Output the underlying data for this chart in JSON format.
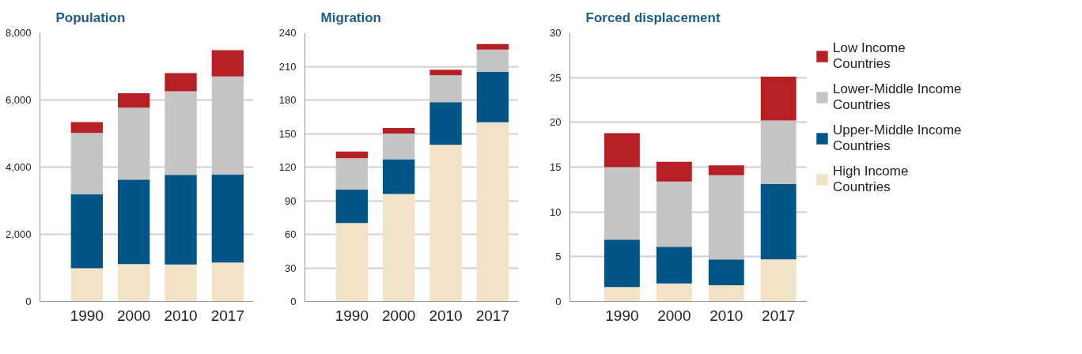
{
  "chart_data": [
    {
      "type": "bar",
      "title": "Population",
      "stacked": true,
      "grid": "y",
      "categories": [
        "1990",
        "2000",
        "2010",
        "2017"
      ],
      "ylim": [
        0,
        8000
      ],
      "yticks": [
        0,
        {
          "value": 2000,
          "label": "2,000"
        },
        {
          "value": 4000,
          "label": "4,000"
        },
        {
          "value": 6000,
          "label": "6,000"
        },
        {
          "value": 8000,
          "label": "8,000"
        }
      ],
      "series": [
        {
          "color": "#f2e3c6",
          "values": [
            990,
            1110,
            1100,
            1160
          ]
        },
        {
          "color": "#005587",
          "values": [
            2200,
            2520,
            2670,
            2620
          ]
        },
        {
          "color": "#c5c5c5",
          "values": [
            1830,
            2140,
            2490,
            2920
          ]
        },
        {
          "color": "#b52024",
          "values": [
            320,
            430,
            540,
            780
          ]
        }
      ]
    },
    {
      "type": "bar",
      "title": "Migration",
      "stacked": true,
      "grid": "y",
      "categories": [
        "1990",
        "2000",
        "2010",
        "2017"
      ],
      "ylim": [
        0,
        240
      ],
      "yticks": [
        0,
        30,
        60,
        90,
        120,
        150,
        180,
        210,
        240
      ],
      "series": [
        {
          "color": "#f2e3c6",
          "values": [
            70,
            96,
            140,
            160
          ]
        },
        {
          "color": "#005587",
          "values": [
            30,
            31,
            38,
            45
          ]
        },
        {
          "color": "#c5c5c5",
          "values": [
            28,
            23,
            24,
            20
          ]
        },
        {
          "color": "#b52024",
          "values": [
            6,
            5,
            5,
            5
          ]
        }
      ]
    },
    {
      "type": "bar",
      "title": "Forced displacement",
      "stacked": true,
      "grid": "y",
      "legend": "right",
      "categories": [
        "1990",
        "2000",
        "2010",
        "2017"
      ],
      "ylim": [
        0,
        30
      ],
      "yticks": [
        0,
        5,
        10,
        15,
        20,
        25,
        30
      ],
      "series": [
        {
          "name": "High Income Countries",
          "color": "#f2e3c6",
          "values": [
            1.6,
            2.0,
            1.8,
            4.7
          ]
        },
        {
          "name": "Upper-Middle Income Countries",
          "color": "#005587",
          "values": [
            5.3,
            4.1,
            2.9,
            8.4
          ]
        },
        {
          "name": "Lower-Middle Income Countries",
          "color": "#c5c5c5",
          "values": [
            8.1,
            7.3,
            9.4,
            7.1
          ]
        },
        {
          "name": "Low Income Countries",
          "color": "#b52024",
          "values": [
            3.8,
            2.2,
            1.1,
            4.9
          ]
        }
      ]
    }
  ]
}
